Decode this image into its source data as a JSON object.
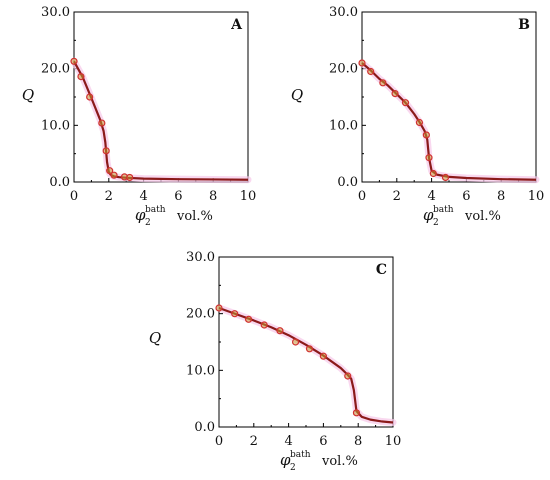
{
  "chart_data": [
    {
      "type": "line",
      "title": "A",
      "xlabel": "φ",
      "xlabel_sub": "2",
      "xlabel_sup": "bath",
      "xunit": "vol.%",
      "ylabel": "Q",
      "xlim": [
        0,
        10
      ],
      "ylim": [
        0,
        30
      ],
      "xticks": [
        "0",
        "2",
        "4",
        "6",
        "8",
        "10"
      ],
      "yticks": [
        "0.0",
        "10.0",
        "20.0",
        "30.0"
      ],
      "grid": false,
      "colors": {
        "line": "#8b1a1a",
        "marker": "#d03030",
        "marker_fill": "#c8a030",
        "band": "#f7c8e8"
      },
      "markers": {
        "x": [
          0,
          0.4,
          0.9,
          1.6,
          1.85,
          2.05,
          2.3,
          2.9,
          3.2
        ],
        "y": [
          21.3,
          18.6,
          15.0,
          10.4,
          5.5,
          2.0,
          1.2,
          0.9,
          0.8
        ]
      },
      "curve": {
        "x": [
          0,
          0.5,
          1.0,
          1.5,
          1.7,
          1.8,
          1.9,
          2.0,
          2.1,
          2.3,
          2.6,
          3.0,
          4.0,
          6.0,
          8.0,
          10.0
        ],
        "y": [
          21.3,
          18.5,
          14.8,
          11.0,
          9.0,
          7.0,
          3.5,
          1.8,
          1.3,
          1.0,
          0.85,
          0.75,
          0.6,
          0.5,
          0.45,
          0.4
        ]
      }
    },
    {
      "type": "line",
      "title": "B",
      "xlabel": "φ",
      "xlabel_sub": "2",
      "xlabel_sup": "bath",
      "xunit": "vol.%",
      "ylabel": "Q",
      "xlim": [
        0,
        10
      ],
      "ylim": [
        0,
        30
      ],
      "xticks": [
        "0",
        "2",
        "4",
        "6",
        "8",
        "10"
      ],
      "yticks": [
        "0.0",
        "10.0",
        "20.0",
        "30.0"
      ],
      "grid": false,
      "colors": {
        "line": "#8b1a1a",
        "marker": "#d03030",
        "marker_fill": "#c8a030",
        "band": "#f7c8e8"
      },
      "markers": {
        "x": [
          0,
          0.5,
          1.2,
          1.9,
          2.5,
          3.3,
          3.7,
          3.85,
          4.1,
          4.8
        ],
        "y": [
          21.0,
          19.5,
          17.5,
          15.6,
          14.0,
          10.5,
          8.3,
          4.3,
          1.5,
          0.8
        ]
      },
      "curve": {
        "x": [
          0,
          0.5,
          1.0,
          1.5,
          2.0,
          2.5,
          3.0,
          3.3,
          3.6,
          3.75,
          3.85,
          4.0,
          4.3,
          5.0,
          6.0,
          8.0,
          10.0
        ],
        "y": [
          21.0,
          19.7,
          18.2,
          17.0,
          15.5,
          14.0,
          12.0,
          10.6,
          9.0,
          7.5,
          4.3,
          2.0,
          1.3,
          0.9,
          0.7,
          0.5,
          0.4
        ]
      }
    },
    {
      "type": "line",
      "title": "C",
      "xlabel": "φ",
      "xlabel_sub": "2",
      "xlabel_sup": "bath",
      "xunit": "vol.%",
      "ylabel": "Q",
      "xlim": [
        0,
        10
      ],
      "ylim": [
        0,
        30
      ],
      "xticks": [
        "0",
        "2",
        "4",
        "6",
        "8",
        "10"
      ],
      "yticks": [
        "0.0",
        "10.0",
        "20.0",
        "30.0"
      ],
      "grid": false,
      "colors": {
        "line": "#8b1a1a",
        "marker": "#d03030",
        "marker_fill": "#c8a030",
        "band": "#f7c8e8"
      },
      "markers": {
        "x": [
          0,
          0.9,
          1.7,
          2.6,
          3.5,
          4.4,
          5.2,
          6.0,
          7.4,
          7.9
        ],
        "y": [
          21.0,
          20.0,
          19.0,
          18.0,
          17.0,
          15.0,
          13.8,
          12.5,
          9.0,
          2.5
        ]
      },
      "curve": {
        "x": [
          0,
          1.0,
          2.0,
          3.0,
          4.0,
          5.0,
          6.0,
          7.0,
          7.4,
          7.6,
          7.75,
          7.9,
          8.2,
          8.7,
          9.3,
          10.0
        ],
        "y": [
          21.0,
          19.9,
          18.8,
          17.6,
          16.2,
          14.5,
          12.6,
          10.4,
          9.2,
          8.5,
          6.5,
          2.8,
          1.8,
          1.3,
          1.0,
          0.8
        ]
      }
    }
  ]
}
